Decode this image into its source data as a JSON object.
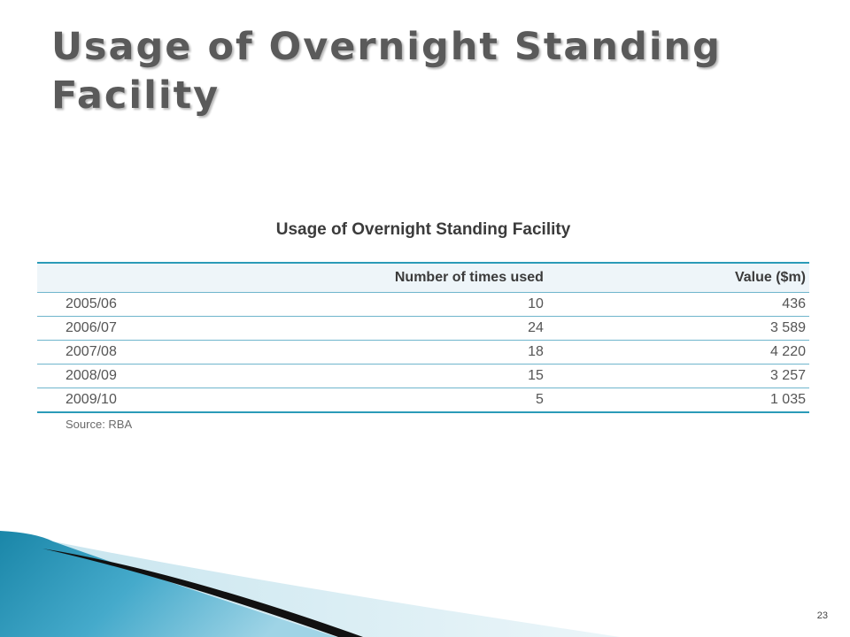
{
  "slide": {
    "title_lines": [
      "Usage of Overnight Standing",
      "Facility"
    ],
    "page_number": "23"
  },
  "table": {
    "caption": "Usage of Overnight Standing Facility",
    "columns": [
      "",
      "Number of times used",
      "Value ($m)"
    ],
    "rows": [
      {
        "year": "2005/06",
        "times": "10",
        "value": "436"
      },
      {
        "year": "2006/07",
        "times": "24",
        "value": "3 589"
      },
      {
        "year": "2007/08",
        "times": "18",
        "value": "4 220"
      },
      {
        "year": "2008/09",
        "times": "15",
        "value": "3 257"
      },
      {
        "year": "2009/10",
        "times": "5",
        "value": "1 035"
      }
    ],
    "source": "Source: RBA"
  },
  "colors": {
    "rule": "#2b9bb8",
    "header_bg": "#eef5f9",
    "wave_teal": "#1f8fb0",
    "wave_dark": "#111111"
  }
}
